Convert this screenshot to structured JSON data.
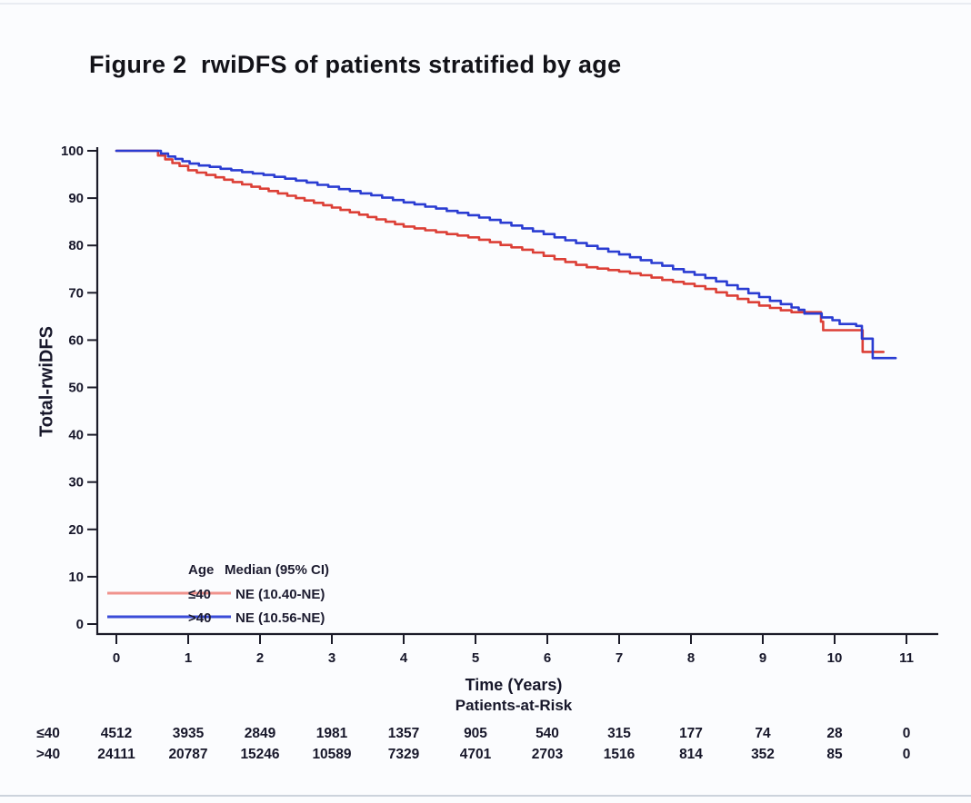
{
  "figure": {
    "title": "Figure 2  rwiDFS of patients stratified by age"
  },
  "chart_data": {
    "type": "line",
    "subtype": "kaplan-meier-survival",
    "title": "Figure 2  rwiDFS of patients stratified by age",
    "xlabel": "Time (Years)",
    "ylabel": "Total-rwiDFS",
    "xlim": [
      0,
      11
    ],
    "ylim": [
      0,
      100
    ],
    "grid": false,
    "x_ticks": [
      0,
      1,
      2,
      3,
      4,
      5,
      6,
      7,
      8,
      9,
      10,
      11
    ],
    "y_ticks": [
      0,
      10,
      20,
      30,
      40,
      50,
      60,
      70,
      80,
      90,
      100
    ],
    "axis_color": "#1b1b28",
    "legend": {
      "position": "inside-bottom-left",
      "age_header": "Age",
      "median_header": "Median (95% CI)"
    },
    "series": [
      {
        "name": "≤40",
        "median": "NE (10.40-NE)",
        "color": "#dc3f36",
        "legend_color": "#f0938d",
        "points": [
          [
            0,
            100
          ],
          [
            0.5,
            100
          ],
          [
            0.58,
            99.0
          ],
          [
            0.68,
            98.2
          ],
          [
            0.78,
            97.4
          ],
          [
            0.88,
            96.8
          ],
          [
            1.0,
            95.9
          ],
          [
            1.12,
            95.4
          ],
          [
            1.25,
            94.9
          ],
          [
            1.38,
            94.4
          ],
          [
            1.5,
            93.9
          ],
          [
            1.62,
            93.4
          ],
          [
            1.75,
            92.9
          ],
          [
            1.88,
            92.4
          ],
          [
            2.0,
            92.0
          ],
          [
            2.12,
            91.5
          ],
          [
            2.25,
            91.0
          ],
          [
            2.38,
            90.5
          ],
          [
            2.5,
            90.0
          ],
          [
            2.62,
            89.5
          ],
          [
            2.75,
            89.0
          ],
          [
            2.88,
            88.5
          ],
          [
            3.0,
            88.0
          ],
          [
            3.12,
            87.5
          ],
          [
            3.25,
            87.0
          ],
          [
            3.38,
            86.5
          ],
          [
            3.5,
            86.0
          ],
          [
            3.62,
            85.5
          ],
          [
            3.75,
            85.0
          ],
          [
            3.88,
            84.5
          ],
          [
            4.0,
            84.0
          ],
          [
            4.15,
            83.6
          ],
          [
            4.3,
            83.2
          ],
          [
            4.45,
            82.8
          ],
          [
            4.6,
            82.4
          ],
          [
            4.75,
            82.1
          ],
          [
            4.9,
            81.7
          ],
          [
            5.05,
            81.2
          ],
          [
            5.2,
            80.7
          ],
          [
            5.35,
            80.1
          ],
          [
            5.5,
            79.6
          ],
          [
            5.65,
            79.1
          ],
          [
            5.8,
            78.5
          ],
          [
            5.95,
            77.8
          ],
          [
            6.1,
            77.1
          ],
          [
            6.25,
            76.5
          ],
          [
            6.4,
            75.9
          ],
          [
            6.55,
            75.4
          ],
          [
            6.7,
            75.1
          ],
          [
            6.85,
            74.8
          ],
          [
            7.0,
            74.5
          ],
          [
            7.15,
            74.1
          ],
          [
            7.3,
            73.7
          ],
          [
            7.45,
            73.2
          ],
          [
            7.6,
            72.7
          ],
          [
            7.75,
            72.3
          ],
          [
            7.9,
            71.9
          ],
          [
            8.05,
            71.4
          ],
          [
            8.2,
            70.8
          ],
          [
            8.35,
            70.1
          ],
          [
            8.5,
            69.4
          ],
          [
            8.65,
            68.7
          ],
          [
            8.8,
            68.0
          ],
          [
            8.95,
            67.3
          ],
          [
            9.1,
            66.8
          ],
          [
            9.25,
            66.3
          ],
          [
            9.4,
            65.9
          ],
          [
            9.78,
            65.9
          ],
          [
            9.81,
            63.9
          ],
          [
            9.84,
            62.1
          ],
          [
            10.36,
            62.1
          ],
          [
            10.39,
            57.5
          ],
          [
            10.68,
            57.5
          ]
        ]
      },
      {
        "name": ">40",
        "median": "NE (10.56-NE)",
        "color": "#2a3cd2",
        "legend_color": "#3a4cd8",
        "points": [
          [
            0,
            100
          ],
          [
            0.52,
            100
          ],
          [
            0.62,
            99.4
          ],
          [
            0.72,
            98.8
          ],
          [
            0.82,
            98.3
          ],
          [
            0.92,
            97.8
          ],
          [
            1.02,
            97.3
          ],
          [
            1.15,
            96.9
          ],
          [
            1.3,
            96.6
          ],
          [
            1.45,
            96.2
          ],
          [
            1.6,
            95.9
          ],
          [
            1.75,
            95.5
          ],
          [
            1.9,
            95.2
          ],
          [
            2.05,
            94.9
          ],
          [
            2.2,
            94.5
          ],
          [
            2.35,
            94.1
          ],
          [
            2.5,
            93.7
          ],
          [
            2.65,
            93.3
          ],
          [
            2.8,
            92.8
          ],
          [
            2.95,
            92.4
          ],
          [
            3.1,
            91.9
          ],
          [
            3.25,
            91.5
          ],
          [
            3.4,
            91.0
          ],
          [
            3.55,
            90.6
          ],
          [
            3.7,
            90.1
          ],
          [
            3.85,
            89.6
          ],
          [
            4.0,
            89.1
          ],
          [
            4.15,
            88.7
          ],
          [
            4.3,
            88.2
          ],
          [
            4.45,
            87.8
          ],
          [
            4.6,
            87.3
          ],
          [
            4.75,
            86.9
          ],
          [
            4.9,
            86.4
          ],
          [
            5.05,
            85.9
          ],
          [
            5.2,
            85.4
          ],
          [
            5.35,
            84.8
          ],
          [
            5.5,
            84.2
          ],
          [
            5.65,
            83.6
          ],
          [
            5.8,
            83.0
          ],
          [
            5.95,
            82.4
          ],
          [
            6.1,
            81.7
          ],
          [
            6.25,
            81.1
          ],
          [
            6.4,
            80.5
          ],
          [
            6.55,
            79.9
          ],
          [
            6.7,
            79.3
          ],
          [
            6.85,
            78.7
          ],
          [
            7.0,
            78.1
          ],
          [
            7.15,
            77.5
          ],
          [
            7.3,
            76.9
          ],
          [
            7.45,
            76.3
          ],
          [
            7.6,
            75.7
          ],
          [
            7.75,
            75.0
          ],
          [
            7.9,
            74.4
          ],
          [
            8.05,
            73.8
          ],
          [
            8.2,
            73.1
          ],
          [
            8.35,
            72.4
          ],
          [
            8.5,
            71.6
          ],
          [
            8.65,
            70.8
          ],
          [
            8.8,
            69.9
          ],
          [
            8.95,
            69.1
          ],
          [
            9.1,
            68.3
          ],
          [
            9.25,
            67.6
          ],
          [
            9.4,
            66.9
          ],
          [
            9.5,
            66.4
          ],
          [
            9.58,
            65.6
          ],
          [
            9.82,
            64.8
          ],
          [
            9.97,
            64.2
          ],
          [
            10.07,
            63.4
          ],
          [
            10.3,
            63.0
          ],
          [
            10.38,
            60.3
          ],
          [
            10.53,
            56.2
          ],
          [
            10.85,
            56.2
          ]
        ]
      }
    ],
    "at_risk": {
      "title": "Patients-at-Risk",
      "rows": [
        {
          "label": "≤40",
          "values": [
            4512,
            3935,
            2849,
            1981,
            1357,
            905,
            540,
            315,
            177,
            74,
            28,
            0
          ]
        },
        {
          "label": ">40",
          "values": [
            24111,
            20787,
            15246,
            10589,
            7329,
            4701,
            2703,
            1516,
            814,
            352,
            85,
            0
          ]
        }
      ]
    }
  }
}
